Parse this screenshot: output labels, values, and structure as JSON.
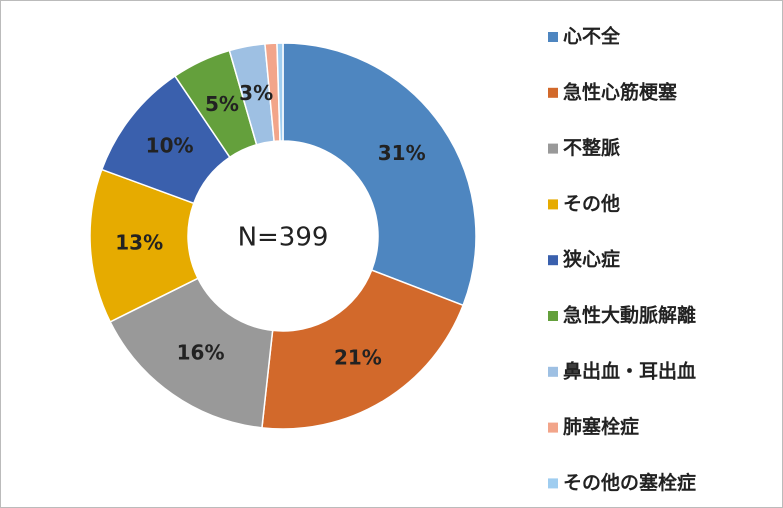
{
  "chart_data": {
    "type": "donut",
    "annotation": "N=399",
    "categories": [
      "心不全",
      "急性心筋梗塞",
      "不整脈",
      "その他",
      "狭心症",
      "急性大動脈解離",
      "鼻出血・耳出血",
      "肺塞栓症",
      "その他の塞栓症"
    ],
    "values": [
      31,
      21,
      16,
      13,
      10,
      5,
      3,
      1,
      0.5
    ],
    "value_labels": [
      "31%",
      "21%",
      "16%",
      "13%",
      "10%",
      "5%",
      "3%",
      null,
      null
    ],
    "colors": [
      "#4e86c0",
      "#d2692b",
      "#999999",
      "#e6ab00",
      "#3a60ad",
      "#64a03c",
      "#9ec0e3",
      "#f2a58a",
      "#9fcdf0"
    ],
    "legend": "right"
  }
}
